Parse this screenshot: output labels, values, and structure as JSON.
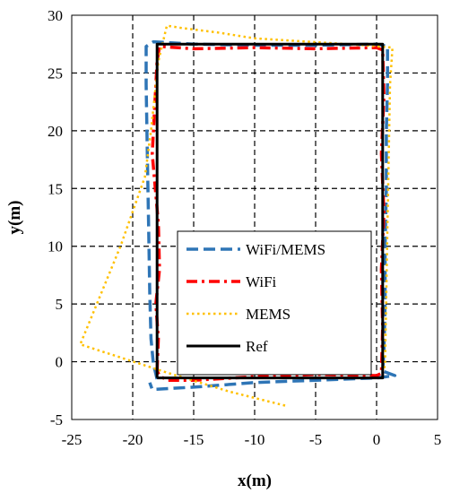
{
  "chart_data": {
    "type": "line",
    "xlabel": "x(m)",
    "ylabel": "y(m)",
    "xlim": [
      -25,
      5
    ],
    "ylim": [
      -5,
      30
    ],
    "xticks": [
      -25,
      -20,
      -15,
      -10,
      -5,
      0,
      5
    ],
    "yticks": [
      -5,
      0,
      5,
      10,
      15,
      20,
      25,
      30
    ],
    "grid": true,
    "legend_position": "center",
    "series": [
      {
        "name": "WiFi/MEMS",
        "color": "#2E75B6",
        "dash": "dashed",
        "points": [
          [
            -18.0,
            -1.5
          ],
          [
            -18.3,
            -0.2
          ],
          [
            -18.5,
            2
          ],
          [
            -18.6,
            6
          ],
          [
            -18.7,
            12
          ],
          [
            -18.8,
            18
          ],
          [
            -18.9,
            24
          ],
          [
            -18.9,
            27.3
          ],
          [
            -18.3,
            27.7
          ],
          [
            -15,
            27.5
          ],
          [
            -10,
            27.4
          ],
          [
            -5,
            27.4
          ],
          [
            0,
            27.5
          ],
          [
            0.9,
            27.3
          ],
          [
            0.9,
            24
          ],
          [
            0.8,
            20
          ],
          [
            0.8,
            15
          ],
          [
            0.7,
            10
          ],
          [
            0.7,
            5
          ],
          [
            0.6,
            1
          ],
          [
            0.5,
            -0.8
          ],
          [
            1.5,
            -1.2
          ],
          [
            0,
            -1.4
          ],
          [
            -5,
            -1.6
          ],
          [
            -10,
            -1.8
          ],
          [
            -15,
            -2.2
          ],
          [
            -18.4,
            -2.4
          ],
          [
            -18.6,
            -1.8
          ]
        ]
      },
      {
        "name": "WiFi",
        "color": "#FF0000",
        "dash": "dashdot",
        "points": [
          [
            -18.0,
            -0.8
          ],
          [
            -17.9,
            2
          ],
          [
            -18.1,
            5
          ],
          [
            -17.8,
            8
          ],
          [
            -17.9,
            12
          ],
          [
            -18.4,
            18
          ],
          [
            -18.2,
            22
          ],
          [
            -18.0,
            26
          ],
          [
            -17.8,
            27.3
          ],
          [
            -15,
            27.1
          ],
          [
            -10,
            27.2
          ],
          [
            -5,
            27.1
          ],
          [
            0,
            27.2
          ],
          [
            0.5,
            27.0
          ],
          [
            0.6,
            23
          ],
          [
            0.4,
            18
          ],
          [
            0.6,
            13
          ],
          [
            0.4,
            8
          ],
          [
            0.5,
            3
          ],
          [
            0.4,
            -1
          ],
          [
            0,
            -1.2
          ],
          [
            -5,
            -1.1
          ],
          [
            -10,
            -1.3
          ],
          [
            -15,
            -1.6
          ],
          [
            -17.2,
            -1.6
          ],
          [
            -17.8,
            -1.2
          ],
          [
            -18.0,
            -0.8
          ]
        ]
      },
      {
        "name": "MEMS",
        "color": "#FFC000",
        "dash": "dotted",
        "points": [
          [
            -7.5,
            -3.8
          ],
          [
            -12,
            -2.6
          ],
          [
            -17,
            -1.0
          ],
          [
            -20.5,
            0.2
          ],
          [
            -24.3,
            1.5
          ],
          [
            -21,
            10
          ],
          [
            -19,
            16
          ],
          [
            -18.5,
            20
          ],
          [
            -17.9,
            26
          ],
          [
            -17.2,
            29.1
          ],
          [
            -16,
            28.9
          ],
          [
            -13,
            28.5
          ],
          [
            -10,
            28.0
          ],
          [
            -7,
            27.8
          ],
          [
            -4,
            27.6
          ],
          [
            -1,
            27.4
          ],
          [
            1.3,
            27.2
          ],
          [
            1.1,
            24
          ],
          [
            1.0,
            18
          ],
          [
            0.9,
            12
          ],
          [
            0.8,
            6
          ],
          [
            0.7,
            0
          ],
          [
            0.6,
            -0.8
          ]
        ]
      },
      {
        "name": "Ref",
        "color": "#000000",
        "dash": "solid",
        "points": [
          [
            -18.0,
            -1.4
          ],
          [
            -18.0,
            27.5
          ],
          [
            0.5,
            27.5
          ],
          [
            0.5,
            -1.4
          ],
          [
            -18.0,
            -1.4
          ]
        ]
      }
    ]
  }
}
